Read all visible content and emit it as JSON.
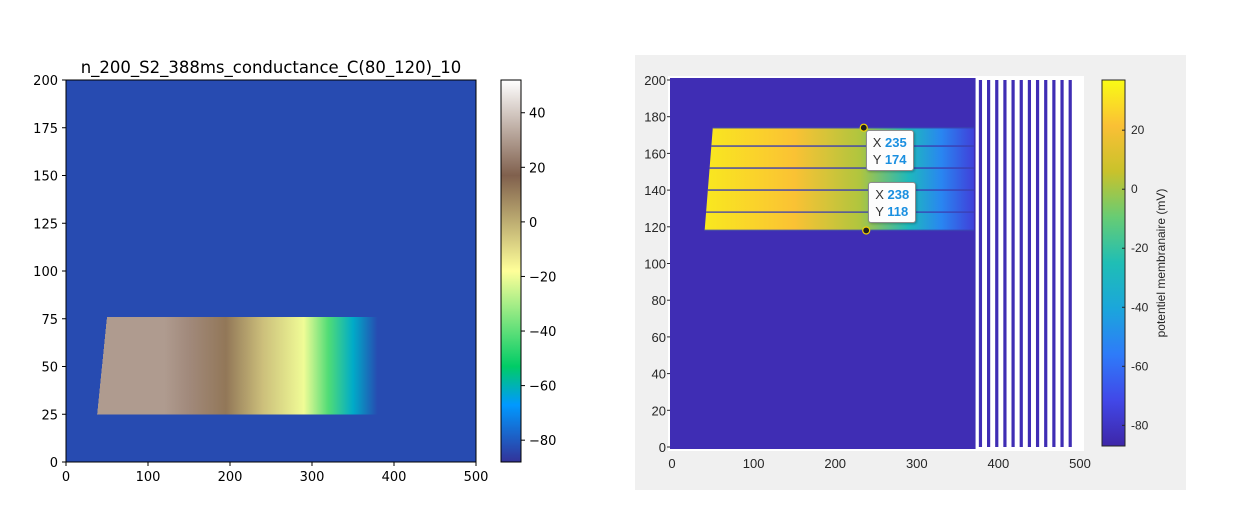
{
  "chart_data": [
    {
      "type": "heatmap",
      "title": "n_200_S2_388ms_conductance_C(80_120)_10",
      "xlabel": "",
      "ylabel": "",
      "xlim": [
        0,
        500
      ],
      "ylim": [
        0,
        200
      ],
      "x_ticks": [
        0,
        100,
        200,
        300,
        400,
        500
      ],
      "y_ticks": [
        0,
        25,
        50,
        75,
        100,
        125,
        150,
        175,
        200
      ],
      "colormap": "terrain",
      "colorbar": {
        "range": [
          -88,
          52
        ],
        "ticks": [
          40,
          20,
          0,
          -20,
          -40,
          -60,
          -80
        ],
        "label": ""
      },
      "background_value": -83,
      "excited_region": {
        "y_range": [
          25,
          76
        ],
        "x_start_bottom": 38,
        "x_start_top": 50,
        "x_end": 380
      },
      "profile": [
        {
          "x": 38,
          "v": 30
        },
        {
          "x": 120,
          "v": 30
        },
        {
          "x": 150,
          "v": 26
        },
        {
          "x": 195,
          "v": 12
        },
        {
          "x": 240,
          "v": -4
        },
        {
          "x": 290,
          "v": -20
        },
        {
          "x": 320,
          "v": -42
        },
        {
          "x": 350,
          "v": -62
        },
        {
          "x": 380,
          "v": -83
        }
      ],
      "grid": false
    },
    {
      "type": "scatter",
      "xlim": [
        0,
        500
      ],
      "ylim": [
        0,
        200
      ],
      "x_ticks": [
        0,
        100,
        200,
        300,
        400,
        500
      ],
      "y_ticks": [
        0,
        20,
        40,
        60,
        80,
        100,
        120,
        140,
        160,
        180,
        200
      ],
      "colormap": "parula",
      "colorbar": {
        "range": [
          -87,
          37
        ],
        "ticks": [
          20,
          0,
          -20,
          -40,
          -60,
          -80
        ],
        "label": "potentiel membranaire (mV)"
      },
      "background_value": -84,
      "excited_region": {
        "y_range": [
          118,
          174
        ],
        "x_start_bottom": 40,
        "x_start_top": 50,
        "x_end": 370
      },
      "profile": [
        {
          "x": 40,
          "v": 32
        },
        {
          "x": 150,
          "v": 22
        },
        {
          "x": 230,
          "v": 2
        },
        {
          "x": 290,
          "v": -28
        },
        {
          "x": 330,
          "v": -52
        },
        {
          "x": 370,
          "v": -75
        }
      ],
      "solid_block_x": [
        0,
        372
      ],
      "columns_x": [
        378,
        388,
        398,
        408,
        418,
        428,
        438,
        448,
        458,
        468,
        478,
        488
      ],
      "dark_rows_y": [
        118,
        128,
        140,
        152,
        164,
        174
      ],
      "datatips": [
        {
          "x": 235,
          "y": 174,
          "x_label": "X",
          "y_label": "Y",
          "x_value": "235",
          "y_value": "174"
        },
        {
          "x": 238,
          "y": 118,
          "x_label": "X",
          "y_label": "Y",
          "x_value": "238",
          "y_value": "118"
        }
      ],
      "grid": false
    }
  ]
}
